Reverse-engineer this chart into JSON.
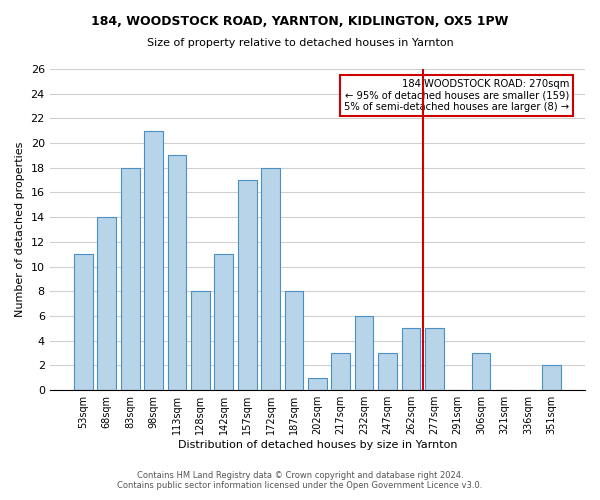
{
  "title1": "184, WOODSTOCK ROAD, YARNTON, KIDLINGTON, OX5 1PW",
  "title2": "Size of property relative to detached houses in Yarnton",
  "xlabel": "Distribution of detached houses by size in Yarnton",
  "ylabel": "Number of detached properties",
  "bar_color": "#b8d4e8",
  "bar_edge_color": "#4a90c4",
  "bins": [
    "53sqm",
    "68sqm",
    "83sqm",
    "98sqm",
    "113sqm",
    "128sqm",
    "142sqm",
    "157sqm",
    "172sqm",
    "187sqm",
    "202sqm",
    "217sqm",
    "232sqm",
    "247sqm",
    "262sqm",
    "277sqm",
    "291sqm",
    "306sqm",
    "321sqm",
    "336sqm",
    "351sqm"
  ],
  "values": [
    11,
    14,
    18,
    21,
    19,
    8,
    11,
    17,
    18,
    8,
    1,
    3,
    6,
    3,
    5,
    5,
    0,
    3,
    0,
    0,
    2
  ],
  "ylim": [
    0,
    26
  ],
  "yticks": [
    0,
    2,
    4,
    6,
    8,
    10,
    12,
    14,
    16,
    18,
    20,
    22,
    24,
    26
  ],
  "vline_x": 15.0,
  "annotation_title": "184 WOODSTOCK ROAD: 270sqm",
  "annotation_line1": "← 95% of detached houses are smaller (159)",
  "annotation_line2": "5% of semi-detached houses are larger (8) →",
  "vline_color": "#cc0000",
  "annotation_box_edge": "#cc0000",
  "footer1": "Contains HM Land Registry data © Crown copyright and database right 2024.",
  "footer2": "Contains public sector information licensed under the Open Government Licence v3.0.",
  "grid_color": "#d0d0d0",
  "background_color": "#ffffff"
}
